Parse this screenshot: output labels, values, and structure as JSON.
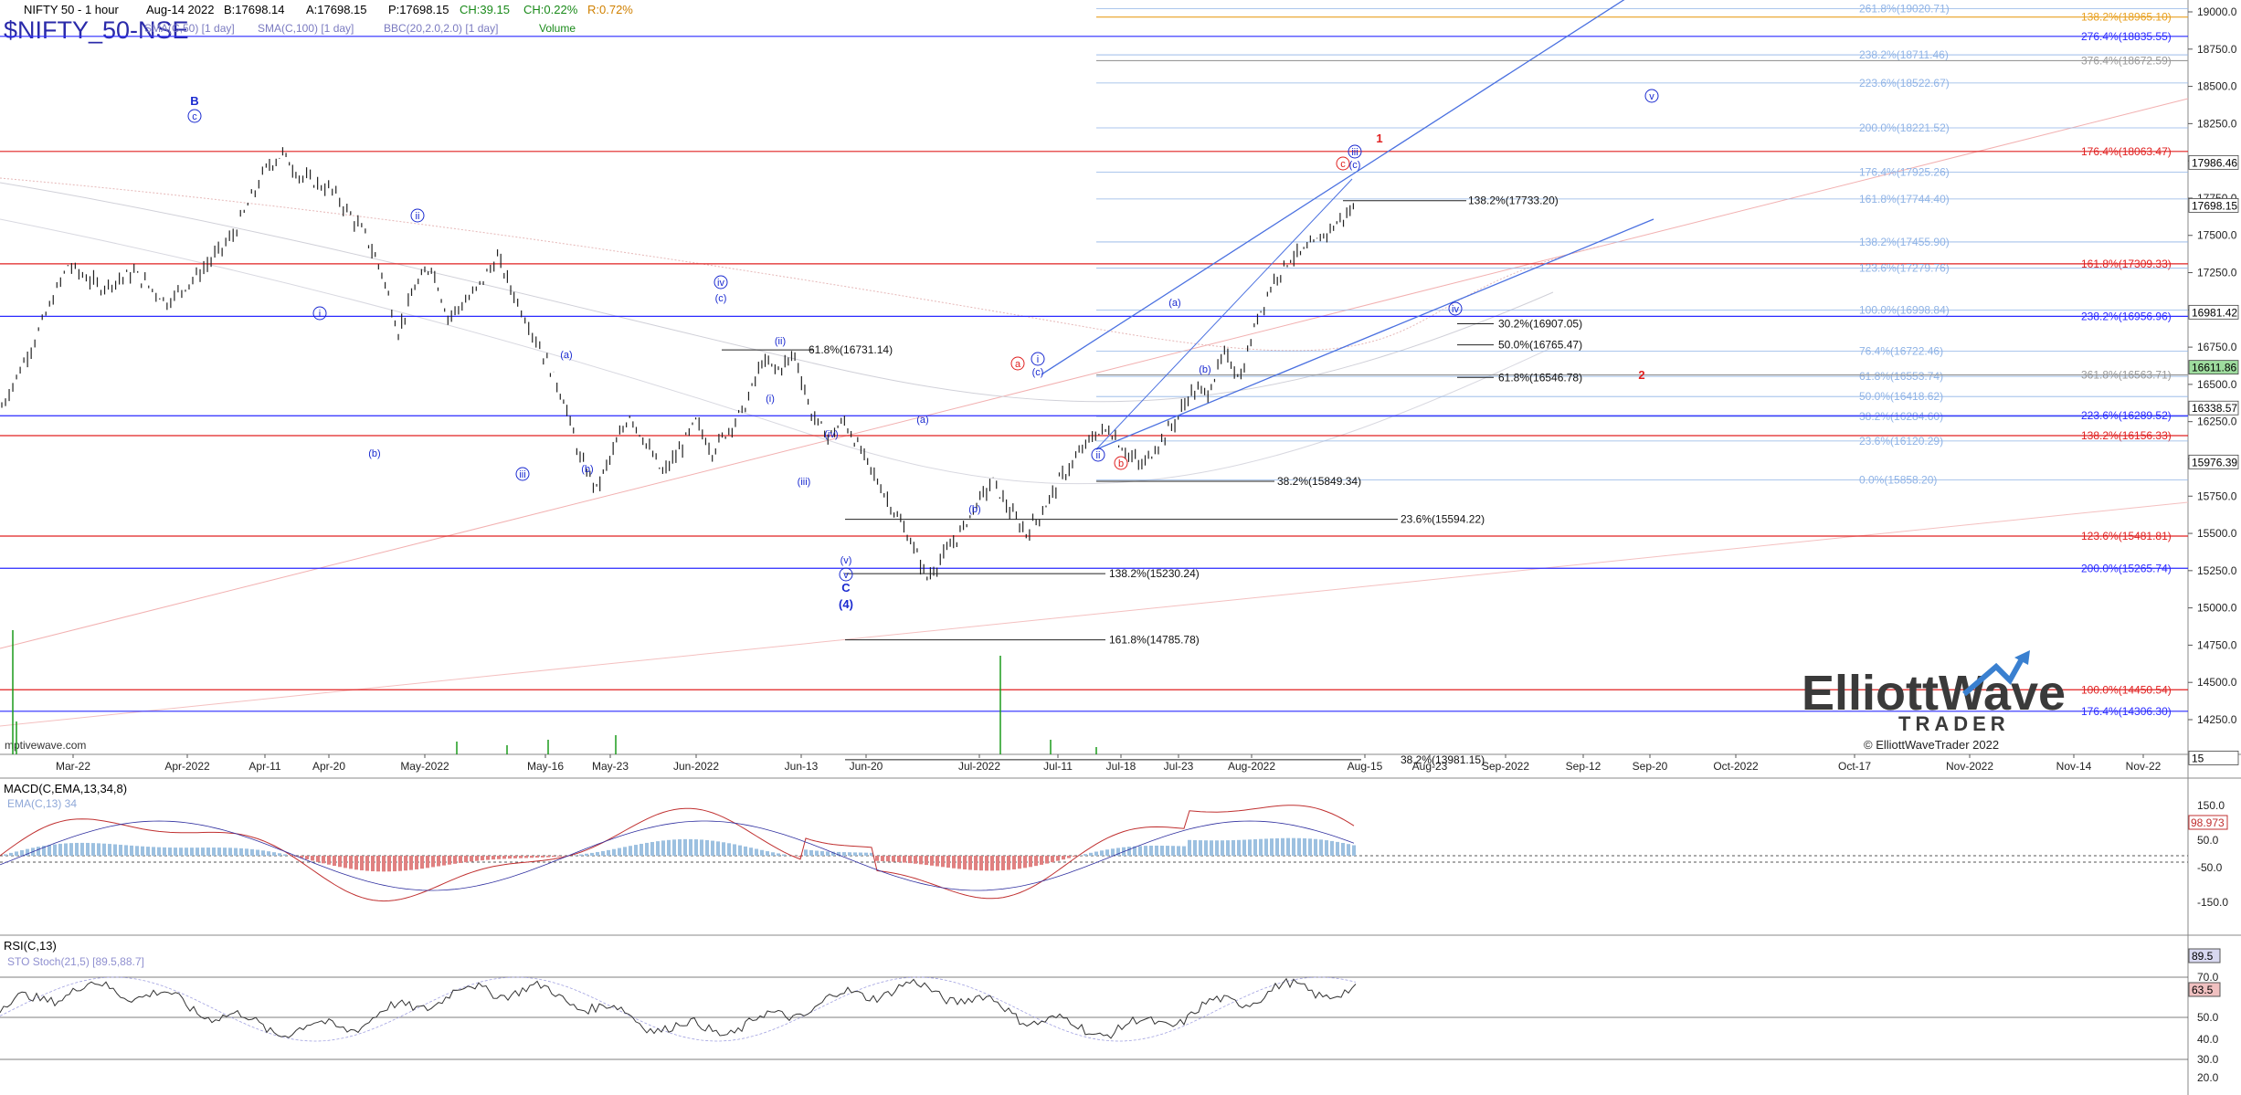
{
  "header": {
    "title": "NIFTY 50 - 1 hour",
    "date": "Aug-14 2022",
    "bid": "B:17698.14",
    "ask": "A:17698.15",
    "price": "P:17698.15",
    "change": "CH:39.15",
    "change_pct": "CH:0.22%",
    "range": "R:0.72%",
    "symbol": "$NIFTY_50-NSE",
    "indicators": [
      "SMA(C,50) [1 day]",
      "SMA(C,100) [1 day]",
      "BBC(20,2.0,2.0) [1 day]",
      "Volume"
    ],
    "watermark": "mptivewave.com"
  },
  "colors": {
    "blue_fib": "#2a2aff",
    "red_fib": "#e02020",
    "light_blue_fib": "#8fb3e6",
    "black_fib": "#222222",
    "gray_fib": "#999999",
    "orange_fib": "#e8a020",
    "bar": "#222222",
    "macd_hist_pos": "#9cc0e0",
    "macd_hist_neg": "#e08080",
    "macd_line": "#c03030",
    "macd_signal": "#3030a0",
    "rsi_fill": "#a0a0d0"
  },
  "chart_data": {
    "type": "candlestick",
    "ylim": [
      13950,
      19050
    ],
    "y_ticks": [
      "19000.0",
      "18750.0",
      "18500.0",
      "18250.0",
      "18000.0",
      "17750.0",
      "17500.0",
      "17250.0",
      "17000.0",
      "16750.0",
      "16500.0",
      "16250.0",
      "16000.0",
      "15750.0",
      "15500.0",
      "15250.0",
      "15000.0",
      "14750.0",
      "14500.0",
      "14250.0"
    ],
    "x_ticks": [
      "Mar-22",
      "Apr-2022",
      "Apr-11",
      "Apr-20",
      "May-2022",
      "May-16",
      "May-23",
      "Jun-2022",
      "Jun-13",
      "Jun-20",
      "Jul-2022",
      "Jul-11",
      "Jul-18",
      "Jul-23",
      "Aug-2022",
      "Aug-15",
      "Aug-23",
      "Sep-2022",
      "Sep-12",
      "Sep-20",
      "Oct-2022",
      "Oct-17",
      "Nov-2022",
      "Nov-14",
      "Nov-22"
    ],
    "price_path": [
      [
        0,
        16350
      ],
      [
        4,
        16800
      ],
      [
        8,
        17300
      ],
      [
        12,
        17150
      ],
      [
        16,
        17250
      ],
      [
        20,
        17050
      ],
      [
        24,
        17250
      ],
      [
        28,
        17500
      ],
      [
        32,
        17950
      ],
      [
        34,
        18050
      ],
      [
        36,
        17900
      ],
      [
        40,
        17800
      ],
      [
        44,
        17500
      ],
      [
        46,
        17250
      ],
      [
        48,
        16850
      ],
      [
        50,
        17150
      ],
      [
        52,
        17300
      ],
      [
        54,
        16950
      ],
      [
        57,
        17100
      ],
      [
        60,
        17350
      ],
      [
        62,
        17100
      ],
      [
        66,
        16650
      ],
      [
        68,
        16400
      ],
      [
        70,
        16000
      ],
      [
        72,
        15800
      ],
      [
        74,
        16050
      ],
      [
        76,
        16300
      ],
      [
        78,
        16100
      ],
      [
        80,
        15900
      ],
      [
        82,
        16050
      ],
      [
        84,
        16250
      ],
      [
        86,
        16050
      ],
      [
        88,
        16200
      ],
      [
        90,
        16350
      ],
      [
        92,
        16650
      ],
      [
        94,
        16600
      ],
      [
        96,
        16700
      ],
      [
        98,
        16300
      ],
      [
        100,
        16150
      ],
      [
        102,
        16250
      ],
      [
        104,
        16050
      ],
      [
        106,
        15850
      ],
      [
        108,
        15650
      ],
      [
        110,
        15450
      ],
      [
        112,
        15200
      ],
      [
        114,
        15350
      ],
      [
        116,
        15500
      ],
      [
        118,
        15700
      ],
      [
        120,
        15850
      ],
      [
        122,
        15650
      ],
      [
        124,
        15500
      ],
      [
        126,
        15650
      ],
      [
        128,
        15850
      ],
      [
        130,
        16000
      ],
      [
        132,
        16150
      ],
      [
        134,
        16200
      ],
      [
        136,
        16050
      ],
      [
        138,
        15950
      ],
      [
        140,
        16100
      ],
      [
        142,
        16250
      ],
      [
        144,
        16450
      ],
      [
        146,
        16450
      ],
      [
        148,
        16700
      ],
      [
        150,
        16550
      ],
      [
        152,
        16950
      ],
      [
        154,
        17200
      ],
      [
        156,
        17350
      ],
      [
        158,
        17400
      ],
      [
        160,
        17500
      ],
      [
        162,
        17600
      ],
      [
        164,
        17700
      ]
    ],
    "last_price": "17698.15",
    "fib_levels": [
      {
        "label": "261.8%(19020.71)",
        "value": 19020.71,
        "color": "light_blue"
      },
      {
        "label": "138.2%(18965.10)",
        "value": 18965.1,
        "color": "orange"
      },
      {
        "label": "276.4%(18835.55)",
        "value": 18835.55,
        "color": "blue"
      },
      {
        "label": "238.2%(18711.46)",
        "value": 18711.46,
        "color": "light_blue"
      },
      {
        "label": "376.4%(18672.59)",
        "value": 18672.59,
        "color": "gray"
      },
      {
        "label": "223.6%(18522.67)",
        "value": 18522.67,
        "color": "light_blue"
      },
      {
        "label": "200.0%(18221.52)",
        "value": 18221.52,
        "color": "light_blue"
      },
      {
        "label": "176.4%(18063.47)",
        "value": 18063.47,
        "color": "red"
      },
      {
        "label": "176.4%(17925.26)",
        "value": 17925.26,
        "color": "light_blue"
      },
      {
        "label": "161.8%(17744.40)",
        "value": 17744.4,
        "color": "light_blue"
      },
      {
        "label": "138.2%(17455.90)",
        "value": 17455.9,
        "color": "light_blue"
      },
      {
        "label": "161.8%(17309.33)",
        "value": 17309.33,
        "color": "red"
      },
      {
        "label": "123.6%(17279.76)",
        "value": 17279.76,
        "color": "light_blue"
      },
      {
        "label": "100.0%(16998.84)",
        "value": 16998.84,
        "color": "light_blue"
      },
      {
        "label": "238.2%(16956.96)",
        "value": 16956.96,
        "color": "blue"
      },
      {
        "label": "76.4%(16722.46)",
        "value": 16722.46,
        "color": "light_blue"
      },
      {
        "label": "61.8%(16553.74)",
        "value": 16553.74,
        "color": "light_blue"
      },
      {
        "label": "361.8%(16563.71)",
        "value": 16563.71,
        "color": "gray"
      },
      {
        "label": "50.0%(16418.62)",
        "value": 16418.62,
        "color": "light_blue"
      },
      {
        "label": "38.2%(16284.60)",
        "value": 16284.6,
        "color": "light_blue"
      },
      {
        "label": "223.6%(16289.52)",
        "value": 16289.52,
        "color": "blue"
      },
      {
        "label": "138.2%(16156.33)",
        "value": 16156.33,
        "color": "red"
      },
      {
        "label": "23.6%(16120.29)",
        "value": 16120.29,
        "color": "light_blue"
      },
      {
        "label": "0.0%(15858.20)",
        "value": 15858.2,
        "color": "light_blue"
      },
      {
        "label": "123.6%(15481.81)",
        "value": 15481.81,
        "color": "red"
      },
      {
        "label": "200.0%(15265.74)",
        "value": 15265.74,
        "color": "blue"
      },
      {
        "label": "100.0%(14450.54)",
        "value": 14450.54,
        "color": "red"
      },
      {
        "label": "176.4%(14306.30)",
        "value": 14306.3,
        "color": "blue"
      }
    ],
    "inline_fibs": [
      {
        "label": "138.2%(17733.20)",
        "value": 17733.2
      },
      {
        "label": "30.2%(16907.05)",
        "value": 16907.05
      },
      {
        "label": "50.0%(16765.47)",
        "value": 16765.47
      },
      {
        "label": "61.8%(16546.78)",
        "value": 16546.78
      },
      {
        "label": "61.8%(16731.14)",
        "value": 16731.14
      },
      {
        "label": "38.2%(15849.34)",
        "value": 15849.34
      },
      {
        "label": "23.6%(15594.22)",
        "value": 15594.22
      },
      {
        "label": "138.2%(15230.24)",
        "value": 15230.24
      },
      {
        "label": "161.8%(14785.78)",
        "value": 14785.78
      },
      {
        "label": "38.2%(13981.15)",
        "value": 13981.15
      }
    ],
    "price_tags": [
      {
        "label": "17986.46",
        "value": 17986.46,
        "bg": "#ffffff"
      },
      {
        "label": "17698.15",
        "value": 17698.15,
        "bg": "#ffffff"
      },
      {
        "label": "16981.42",
        "value": 16981.42,
        "bg": "#ffffff"
      },
      {
        "label": "16611.86",
        "value": 16611.86,
        "bg": "#9edc9e"
      },
      {
        "label": "16338.57",
        "value": 16338.57,
        "bg": "#ffffff"
      },
      {
        "label": "15976.39",
        "value": 15976.39,
        "bg": "#ffffff"
      },
      {
        "label": "15",
        "value": 13990,
        "bg": "#ffffff"
      }
    ],
    "wave_labels": [
      {
        "text": "B",
        "color": "blue"
      },
      {
        "text": "c",
        "color": "blue"
      },
      {
        "text": "i",
        "color": "blue"
      },
      {
        "text": "ii",
        "color": "blue"
      },
      {
        "text": "(a)",
        "color": "blue"
      },
      {
        "text": "(b)",
        "color": "blue"
      },
      {
        "text": "iii",
        "color": "blue"
      },
      {
        "text": "(b)",
        "color": "blue"
      },
      {
        "text": "iv",
        "color": "blue"
      },
      {
        "text": "(c)",
        "color": "blue"
      },
      {
        "text": "(i)",
        "color": "blue"
      },
      {
        "text": "(ii)",
        "color": "blue"
      },
      {
        "text": "(iii)",
        "color": "blue"
      },
      {
        "text": "(iv)",
        "color": "blue"
      },
      {
        "text": "(v)",
        "color": "blue"
      },
      {
        "text": "v",
        "color": "blue"
      },
      {
        "text": "C",
        "color": "blue"
      },
      {
        "text": "(4)",
        "color": "blue"
      },
      {
        "text": "(a)",
        "color": "blue"
      },
      {
        "text": "(b)",
        "color": "blue"
      },
      {
        "text": "a",
        "color": "red"
      },
      {
        "text": "i",
        "color": "blue"
      },
      {
        "text": "(c)",
        "color": "blue"
      },
      {
        "text": "ii",
        "color": "blue"
      },
      {
        "text": "b",
        "color": "red"
      },
      {
        "text": "(a)",
        "color": "blue"
      },
      {
        "text": "(b)",
        "color": "blue"
      },
      {
        "text": "iii",
        "color": "blue"
      },
      {
        "text": "(c)",
        "color": "blue"
      },
      {
        "text": "c",
        "color": "red"
      },
      {
        "text": "1",
        "color": "red"
      },
      {
        "text": "iv",
        "color": "blue"
      },
      {
        "text": "v",
        "color": "blue"
      },
      {
        "text": "2",
        "color": "red"
      }
    ]
  },
  "macd": {
    "title": "MACD(C,EMA,13,34,8)",
    "subtitle": "EMA(C,13) 34",
    "value": "98.973",
    "y_ticks": [
      "150.0",
      "50.0",
      "-50.0",
      "-150.0"
    ]
  },
  "rsi": {
    "title": "RSI(C,13)",
    "subtitle": "STO Stoch(21,5) [89.5,88.7]",
    "values": [
      "89.5",
      "63.5"
    ],
    "y_ticks": [
      "70.0",
      "50.0",
      "40.0",
      "30.0",
      "20.0"
    ]
  },
  "logo": {
    "line1": "ElliottWave",
    "line2": "TRADER",
    "copyright": "© ElliottWaveTrader 2022"
  }
}
